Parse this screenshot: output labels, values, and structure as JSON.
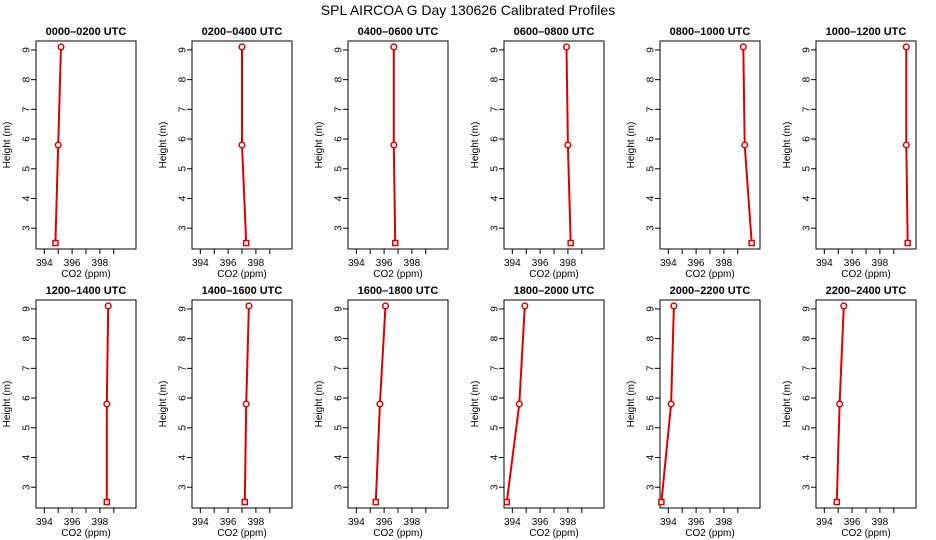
{
  "title": "SPL AIRCOA G  Day 130626  Calibrated Profiles",
  "chart_data": {
    "type": "line",
    "layout": "2 rows x 6 panels",
    "shared": {
      "xlabel": "CO2 (ppm)",
      "ylabel": "Height (m)",
      "xlim": [
        393.4,
        400.6
      ],
      "xticks": [
        394,
        396,
        398
      ],
      "ylim": [
        2.3,
        9.3
      ],
      "yticks": [
        3,
        4,
        5,
        6,
        7,
        8,
        9
      ],
      "grid": false,
      "line_color": "#dd0000",
      "marker_color": "#dd0000"
    },
    "panels": [
      {
        "title": "0000–0200 UTC",
        "points": [
          {
            "co2": 394.8,
            "height": 2.5
          },
          {
            "co2": 395.0,
            "height": 5.8
          },
          {
            "co2": 395.2,
            "height": 9.1
          }
        ]
      },
      {
        "title": "0200–0400 UTC",
        "points": [
          {
            "co2": 397.3,
            "height": 2.5
          },
          {
            "co2": 397.0,
            "height": 5.8
          },
          {
            "co2": 397.0,
            "height": 9.1
          }
        ]
      },
      {
        "title": "0400–0600 UTC",
        "points": [
          {
            "co2": 396.8,
            "height": 2.5
          },
          {
            "co2": 396.7,
            "height": 5.8
          },
          {
            "co2": 396.7,
            "height": 9.1
          }
        ]
      },
      {
        "title": "0600–0800 UTC",
        "points": [
          {
            "co2": 398.2,
            "height": 2.5
          },
          {
            "co2": 398.0,
            "height": 5.8
          },
          {
            "co2": 397.9,
            "height": 9.1
          }
        ]
      },
      {
        "title": "0800–1000 UTC",
        "points": [
          {
            "co2": 400.0,
            "height": 2.5
          },
          {
            "co2": 399.5,
            "height": 5.8
          },
          {
            "co2": 399.4,
            "height": 9.1
          }
        ]
      },
      {
        "title": "1000–1200 UTC",
        "points": [
          {
            "co2": 400.0,
            "height": 2.5
          },
          {
            "co2": 399.9,
            "height": 5.8
          },
          {
            "co2": 399.9,
            "height": 9.1
          }
        ]
      },
      {
        "title": "1200–1400 UTC",
        "points": [
          {
            "co2": 398.5,
            "height": 2.5
          },
          {
            "co2": 398.5,
            "height": 5.8
          },
          {
            "co2": 398.6,
            "height": 9.1
          }
        ]
      },
      {
        "title": "1400–1600 UTC",
        "points": [
          {
            "co2": 397.2,
            "height": 2.5
          },
          {
            "co2": 397.3,
            "height": 5.8
          },
          {
            "co2": 397.5,
            "height": 9.1
          }
        ]
      },
      {
        "title": "1600–1800 UTC",
        "points": [
          {
            "co2": 395.4,
            "height": 2.5
          },
          {
            "co2": 395.7,
            "height": 5.8
          },
          {
            "co2": 396.1,
            "height": 9.1
          }
        ]
      },
      {
        "title": "1800–2000 UTC",
        "points": [
          {
            "co2": 393.6,
            "height": 2.5
          },
          {
            "co2": 394.5,
            "height": 5.8
          },
          {
            "co2": 394.9,
            "height": 9.1
          }
        ]
      },
      {
        "title": "2000–2200 UTC",
        "points": [
          {
            "co2": 393.5,
            "height": 2.5
          },
          {
            "co2": 394.2,
            "height": 5.8
          },
          {
            "co2": 394.4,
            "height": 9.1
          }
        ]
      },
      {
        "title": "2200–2400 UTC",
        "points": [
          {
            "co2": 394.9,
            "height": 2.5
          },
          {
            "co2": 395.1,
            "height": 5.8
          },
          {
            "co2": 395.4,
            "height": 9.1
          }
        ]
      }
    ]
  }
}
